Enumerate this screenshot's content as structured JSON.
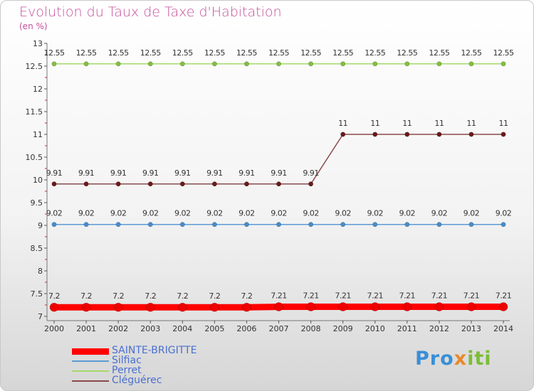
{
  "title": "Evolution du Taux de Taxe d'Habitation",
  "subtitle": "(en %)",
  "logo": {
    "parts": [
      "Pro",
      "x",
      "iti"
    ],
    "colors": [
      "#3a8fd6",
      "#e8892b",
      "#7bbd38"
    ]
  },
  "chart_data": {
    "type": "line",
    "x": [
      2000,
      2001,
      2002,
      2003,
      2004,
      2005,
      2006,
      2007,
      2008,
      2009,
      2010,
      2011,
      2012,
      2013,
      2014
    ],
    "ylim": [
      7,
      13
    ],
    "yticks": [
      "7",
      "7.5",
      "8",
      "8.5",
      "9",
      "9.5",
      "10",
      "10.5",
      "11",
      "11.5",
      "12",
      "12.5",
      "13"
    ],
    "legend_placement": "bottom-left",
    "series": [
      {
        "name": "SAINTE-BRIGITTE",
        "color": "#ff0000",
        "dot": "#ee0000",
        "width": 9,
        "r": 6,
        "values": [
          7.2,
          7.2,
          7.2,
          7.2,
          7.2,
          7.2,
          7.2,
          7.21,
          7.21,
          7.21,
          7.21,
          7.21,
          7.21,
          7.21,
          7.21
        ],
        "labels": [
          "7.2",
          "7.2",
          "7.2",
          "7.2",
          "7.2",
          "7.2",
          "7.2",
          "7.21",
          "7.21",
          "7.21",
          "7.21",
          "7.21",
          "7.21",
          "7.21",
          "7.21"
        ]
      },
      {
        "name": "Silfiac",
        "color": "#5b9bd5",
        "dot": "#4a8cc8",
        "width": 1.5,
        "r": 3.2,
        "values": [
          9.02,
          9.02,
          9.02,
          9.02,
          9.02,
          9.02,
          9.02,
          9.02,
          9.02,
          9.02,
          9.02,
          9.02,
          9.02,
          9.02,
          9.02
        ],
        "labels": [
          "9.02",
          "9.02",
          "9.02",
          "9.02",
          "9.02",
          "9.02",
          "9.02",
          "9.02",
          "9.02",
          "9.02",
          "9.02",
          "9.02",
          "9.02",
          "9.02",
          "9.02"
        ]
      },
      {
        "name": "Perret",
        "color": "#a6d96a",
        "dot": "#80c040",
        "width": 1.5,
        "r": 3.2,
        "values": [
          12.55,
          12.55,
          12.55,
          12.55,
          12.55,
          12.55,
          12.55,
          12.55,
          12.55,
          12.55,
          12.55,
          12.55,
          12.55,
          12.55,
          12.55
        ],
        "labels": [
          "12.55",
          "12.55",
          "12.55",
          "12.55",
          "12.55",
          "12.55",
          "12.55",
          "12.55",
          "12.55",
          "12.55",
          "12.55",
          "12.55",
          "12.55",
          "12.55",
          "12.55"
        ]
      },
      {
        "name": "Cléguérec",
        "color": "#8b4a4a",
        "dot": "#6a1a1a",
        "width": 1.5,
        "r": 3.2,
        "values": [
          9.91,
          9.91,
          9.91,
          9.91,
          9.91,
          9.91,
          9.91,
          9.91,
          9.91,
          11,
          11,
          11,
          11,
          11,
          11
        ],
        "labels": [
          "9.91",
          "9.91",
          "9.91",
          "9.91",
          "9.91",
          "9.91",
          "9.91",
          "9.91",
          "9.91",
          "11",
          "11",
          "11",
          "11",
          "11",
          "11"
        ]
      }
    ]
  }
}
